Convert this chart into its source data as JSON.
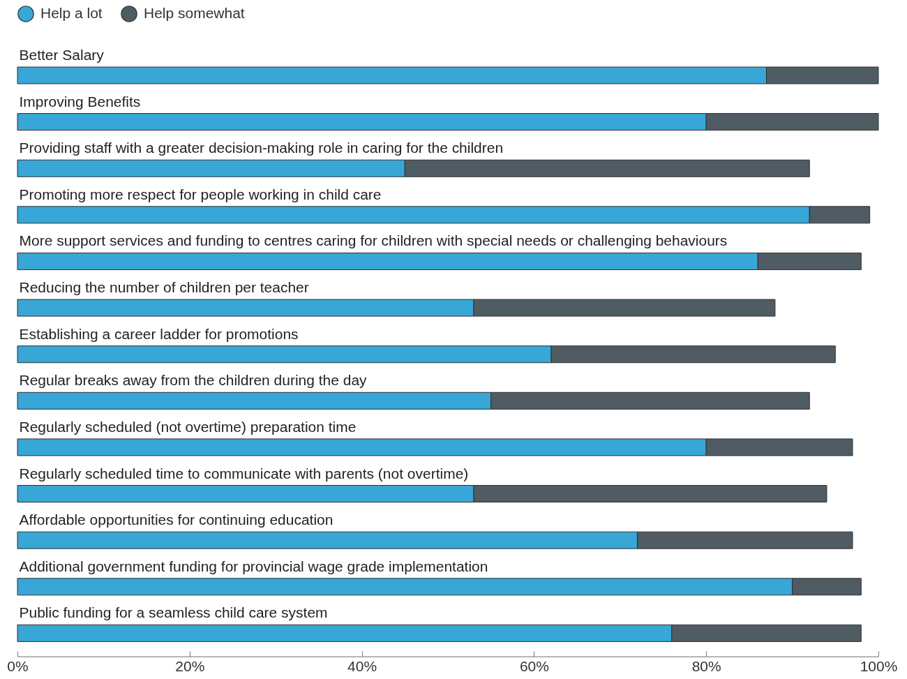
{
  "chart_data": {
    "type": "bar",
    "orientation": "horizontal",
    "stacked": true,
    "categories": [
      "Better Salary",
      "Improving Benefits",
      "Providing staff with a greater decision-making role in caring for the children",
      "Promoting more respect for people working in child care",
      "More support services and funding to centres caring for children with special needs or challenging behaviours",
      "Reducing the number of children per teacher",
      "Establishing a career ladder for promotions",
      "Regular breaks away from the children during the day",
      "Regularly scheduled (not overtime) preparation time",
      "Regularly scheduled time to communicate with parents (not overtime)",
      "Affordable opportunities for continuing education",
      "Additional government funding for provincial wage grade implementation",
      "Public funding for a seamless child care system"
    ],
    "series": [
      {
        "name": "Help a lot",
        "color": "#38a6d6",
        "values": [
          87,
          80,
          45,
          92,
          86,
          53,
          62,
          55,
          80,
          53,
          72,
          90,
          76
        ]
      },
      {
        "name": "Help somewhat",
        "color": "#505c64",
        "values": [
          13,
          20,
          47,
          7,
          12,
          35,
          33,
          37,
          17,
          41,
          25,
          8,
          22
        ]
      }
    ],
    "xlim": [
      0,
      100
    ],
    "xticks": [
      {
        "value": 0,
        "label": "0%"
      },
      {
        "value": 20,
        "label": "20%"
      },
      {
        "value": 40,
        "label": "40%"
      },
      {
        "value": 60,
        "label": "60%"
      },
      {
        "value": 80,
        "label": "80%"
      },
      {
        "value": 100,
        "label": "100%"
      }
    ],
    "legend": "top left"
  }
}
